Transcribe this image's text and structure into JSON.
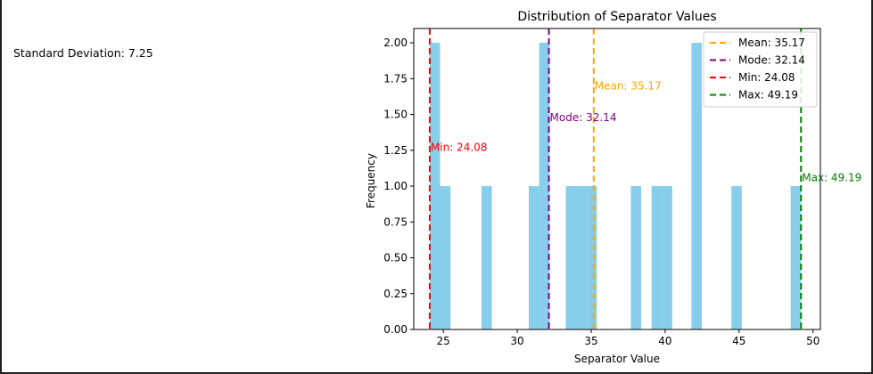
{
  "stats": {
    "std_text": "Standard Deviation: 7.25"
  },
  "chart_data": {
    "type": "bar",
    "title": "Distribution of Separator Values",
    "xlabel": "Separator Value",
    "ylabel": "Frequency",
    "xlim": [
      23,
      50.5
    ],
    "ylim": [
      0,
      2.1
    ],
    "xticks": [
      25,
      30,
      35,
      40,
      45,
      50
    ],
    "yticks": [
      0.0,
      0.25,
      0.5,
      0.75,
      1.0,
      1.25,
      1.5,
      1.75,
      2.0
    ],
    "ytick_labels": [
      "0.00",
      "0.25",
      "0.50",
      "0.75",
      "1.00",
      "1.25",
      "1.50",
      "1.75",
      "2.00"
    ],
    "bin_width": 0.7,
    "bins": [
      {
        "x0": 24.08,
        "count": 2
      },
      {
        "x0": 24.78,
        "count": 1
      },
      {
        "x0": 27.58,
        "count": 1
      },
      {
        "x0": 30.78,
        "count": 1
      },
      {
        "x0": 31.48,
        "count": 2
      },
      {
        "x0": 33.28,
        "count": 1
      },
      {
        "x0": 33.98,
        "count": 1
      },
      {
        "x0": 34.68,
        "count": 1
      },
      {
        "x0": 37.68,
        "count": 1
      },
      {
        "x0": 39.08,
        "count": 1
      },
      {
        "x0": 39.78,
        "count": 1
      },
      {
        "x0": 41.78,
        "count": 2
      },
      {
        "x0": 44.48,
        "count": 1
      },
      {
        "x0": 48.49,
        "count": 1
      }
    ],
    "bar_color": "#87ceeb",
    "lines": [
      {
        "name": "Mean",
        "value": 35.17,
        "legend": "Mean: 35.17",
        "label": "Mean: 35.17",
        "label_y": 1.7,
        "color": "#ffa500"
      },
      {
        "name": "Mode",
        "value": 32.14,
        "legend": "Mode: 32.14",
        "label": "Mode: 32.14",
        "label_y": 1.48,
        "color": "#800080"
      },
      {
        "name": "Min",
        "value": 24.08,
        "legend": "Min: 24.08",
        "label": "Min: 24.08",
        "label_y": 1.27,
        "color": "#ff0000"
      },
      {
        "name": "Max",
        "value": 49.19,
        "legend": "Max: 49.19",
        "label": "Max: 49.19",
        "label_y": 1.06,
        "color": "#008000"
      }
    ],
    "legend_position": "top-right",
    "grid": false
  }
}
